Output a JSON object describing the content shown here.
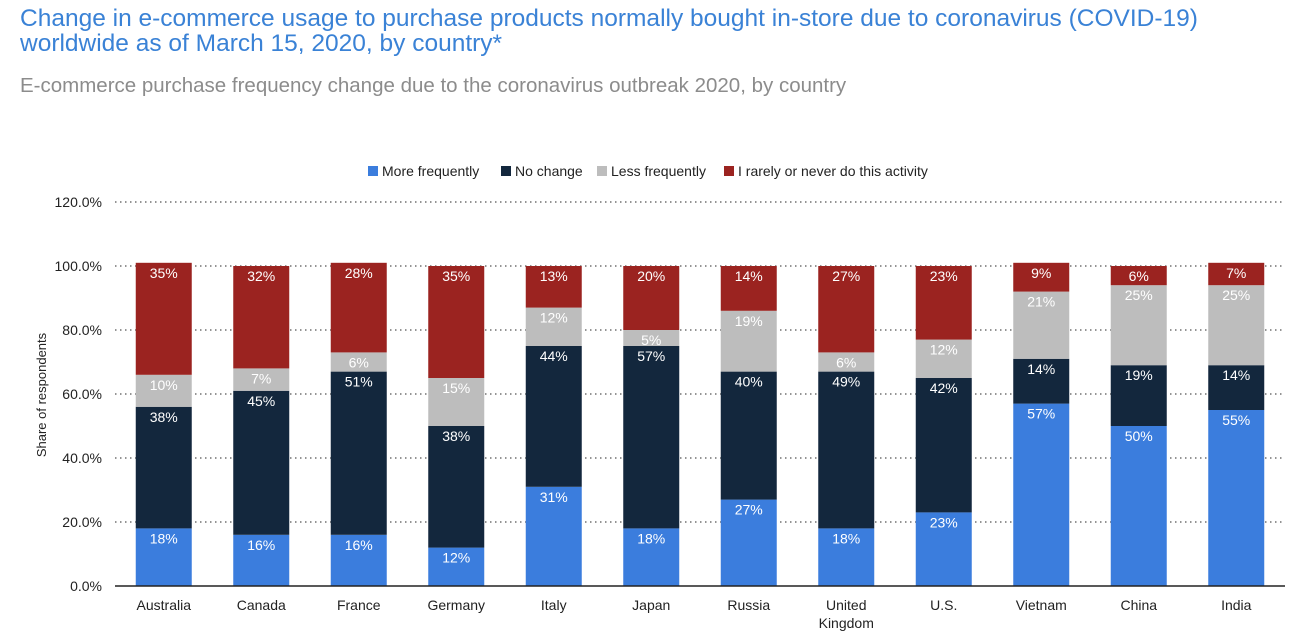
{
  "title": "Change in e-commerce usage to purchase products normally bought in-store due to coronavirus (COVID-19) worldwide as of March 15, 2020, by country*",
  "subtitle": "E-commerce purchase frequency change due to the coronavirus outbreak 2020, by country",
  "chart_data": {
    "type": "bar",
    "stacked": true,
    "ylabel": "Share of respondents",
    "xlabel": "",
    "ylim": [
      0,
      120
    ],
    "yticks": [
      "0.0%",
      "20.0%",
      "40.0%",
      "60.0%",
      "80.0%",
      "100.0%",
      "120.0%"
    ],
    "ytick_values": [
      0,
      20,
      40,
      60,
      80,
      100,
      120
    ],
    "grid": true,
    "legend_position": "top-center",
    "categories": [
      [
        "Australia"
      ],
      [
        "Canada"
      ],
      [
        "France"
      ],
      [
        "Germany"
      ],
      [
        "Italy"
      ],
      [
        "Japan"
      ],
      [
        "Russia"
      ],
      [
        "United",
        "Kingdom"
      ],
      [
        "U.S."
      ],
      [
        "Vietnam"
      ],
      [
        "China"
      ],
      [
        "India"
      ]
    ],
    "series": [
      {
        "name": "More frequently",
        "color": "#3b7ddd",
        "values": [
          18,
          16,
          16,
          12,
          31,
          18,
          27,
          18,
          23,
          57,
          50,
          55
        ],
        "labels": [
          "18%",
          "16%",
          "16%",
          "12%",
          "31%",
          "18%",
          "27%",
          "18%",
          "23%",
          "57%",
          "50%",
          "55%"
        ]
      },
      {
        "name": "No change",
        "color": "#13273d",
        "values": [
          38,
          45,
          51,
          38,
          44,
          57,
          40,
          49,
          42,
          14,
          19,
          14
        ],
        "labels": [
          "38%",
          "45%",
          "51%",
          "38%",
          "44%",
          "57%",
          "40%",
          "49%",
          "42%",
          "14%",
          "19%",
          "14%"
        ]
      },
      {
        "name": "Less frequently",
        "color": "#bdbdbd",
        "values": [
          10,
          7,
          6,
          15,
          12,
          5,
          19,
          6,
          12,
          21,
          25,
          25
        ],
        "labels": [
          "10%",
          "7%",
          "6%",
          "15%",
          "12%",
          "5%",
          "19%",
          "6%",
          "12%",
          "21%",
          "25%",
          "25%"
        ]
      },
      {
        "name": "I rarely or never do this activity",
        "color": "#9b2320",
        "values": [
          35,
          32,
          28,
          35,
          13,
          20,
          14,
          27,
          23,
          9,
          6,
          7
        ],
        "labels": [
          "35%",
          "32%",
          "28%",
          "35%",
          "13%",
          "20%",
          "14%",
          "27%",
          "23%",
          "9%",
          "6%",
          "7%"
        ]
      }
    ]
  }
}
